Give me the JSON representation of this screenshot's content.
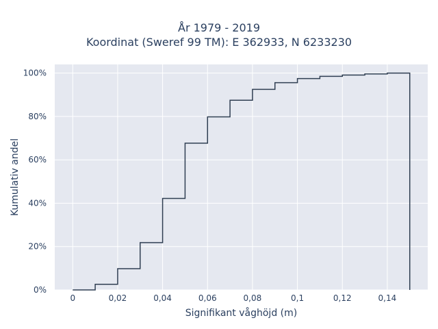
{
  "chart_data": {
    "type": "line",
    "subtype": "cumulative-step-histogram",
    "title": "År 1979 - 2019",
    "subtitle": "Koordinat (Sweref 99 TM): E 362933, N 6233230",
    "xlabel": "Signifikant våghöjd (m)",
    "ylabel": "Kumulativ andel",
    "xlim": [
      -0.008,
      0.158
    ],
    "ylim": [
      0,
      1.04
    ],
    "xticks": [
      0,
      0.02,
      0.04,
      0.06,
      0.08,
      0.1,
      0.12,
      0.14
    ],
    "xtick_labels": [
      "0",
      "0,02",
      "0,04",
      "0,06",
      "0,08",
      "0,1",
      "0,12",
      "0,14"
    ],
    "yticks": [
      0,
      0.2,
      0.4,
      0.6,
      0.8,
      1.0
    ],
    "ytick_labels": [
      "0%",
      "20%",
      "40%",
      "60%",
      "80%",
      "100%"
    ],
    "grid": true,
    "legend": "none",
    "bin_edges": [
      0,
      0.01,
      0.02,
      0.03,
      0.04,
      0.05,
      0.06,
      0.07,
      0.08,
      0.09,
      0.1,
      0.11,
      0.12,
      0.13,
      0.14,
      0.15
    ],
    "cumulative": [
      0.0,
      0.026,
      0.098,
      0.218,
      0.422,
      0.677,
      0.798,
      0.875,
      0.925,
      0.956,
      0.975,
      0.985,
      0.991,
      0.996,
      1.0
    ],
    "colors": {
      "line": "#2f3e52",
      "plot_bg": "#e5e8f0",
      "grid": "#ffffff",
      "text": "#2a3f5f"
    }
  }
}
